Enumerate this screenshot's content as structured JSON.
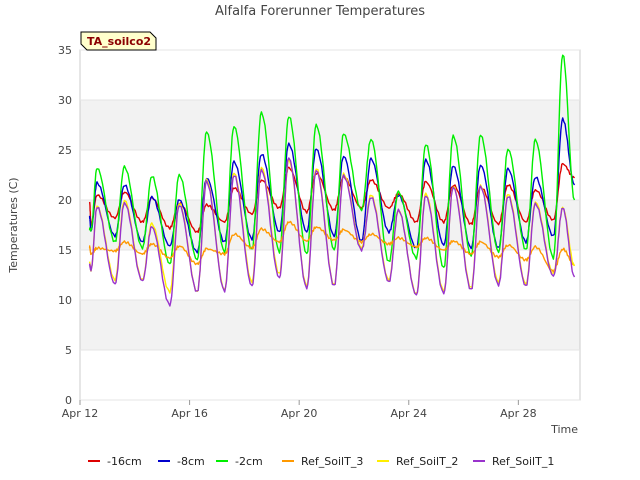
{
  "chart_data": {
    "type": "line",
    "title": "Alfalfa Forerunner Temperatures",
    "xlabel": "Time",
    "ylabel": "Temperatures (C)",
    "site_badge": "TA_soilco2",
    "ylim": [
      0,
      35
    ],
    "yticks": [
      0,
      5,
      10,
      15,
      20,
      25,
      30,
      35
    ],
    "xlim_days": [
      12,
      30.25
    ],
    "xticks": [
      {
        "day": 12,
        "label": "Apr 12"
      },
      {
        "day": 16,
        "label": "Apr 16"
      },
      {
        "day": 20,
        "label": "Apr 20"
      },
      {
        "day": 24,
        "label": "Apr 24"
      },
      {
        "day": 28,
        "label": "Apr 28"
      }
    ],
    "grid": "alternating horizontal bands",
    "legend_position": "bottom",
    "daily_days": [
      12,
      13,
      14,
      15,
      16,
      17,
      18,
      19,
      20,
      21,
      22,
      23,
      24,
      25,
      26,
      27,
      28,
      29
    ],
    "series": [
      {
        "name": "-16cm",
        "color": "#dd0000",
        "start": 19.8,
        "end": 22.2,
        "daily_max": [
          20.5,
          20.8,
          20.2,
          19.7,
          19.5,
          21.2,
          22.0,
          23.2,
          22.7,
          22.3,
          22.0,
          20.6,
          21.8,
          21.5,
          21.3,
          21.5,
          21.0,
          23.6
        ],
        "daily_min": [
          17.6,
          18.2,
          17.8,
          17.2,
          16.8,
          17.8,
          18.6,
          19.2,
          18.8,
          19.0,
          19.2,
          19.2,
          17.8,
          17.8,
          17.6,
          17.6,
          17.8,
          18.0
        ]
      },
      {
        "name": "-8cm",
        "color": "#0000cc",
        "start": 18.3,
        "end": 21.5,
        "daily_max": [
          21.7,
          21.5,
          20.3,
          20.0,
          22.2,
          23.8,
          24.6,
          25.6,
          25.1,
          24.4,
          24.1,
          20.5,
          24.0,
          23.4,
          23.5,
          23.1,
          22.3,
          28.1
        ],
        "daily_min": [
          16.9,
          16.4,
          15.8,
          15.4,
          14.8,
          15.8,
          16.1,
          16.8,
          16.8,
          16.4,
          15.9,
          16.8,
          15.2,
          15.5,
          15.2,
          15.2,
          15.8,
          16.4
        ]
      },
      {
        "name": "-2cm",
        "color": "#00ee00",
        "start": 17.1,
        "end": 20.0,
        "daily_max": [
          23.2,
          23.3,
          22.4,
          22.5,
          26.8,
          27.4,
          28.7,
          28.4,
          27.5,
          26.6,
          26.1,
          20.8,
          25.6,
          26.4,
          26.5,
          25.1,
          26.0,
          34.6
        ],
        "daily_min": [
          17.0,
          15.8,
          15.2,
          13.6,
          14.0,
          14.8,
          15.0,
          14.8,
          14.6,
          15.0,
          19.0,
          13.8,
          14.2,
          13.2,
          14.4,
          14.8,
          15.0,
          14.2
        ]
      },
      {
        "name": "Ref_SoilT_3",
        "color": "#ff9900",
        "start": 15.3,
        "end": 13.5,
        "daily_max": [
          15.2,
          15.8,
          15.6,
          15.4,
          15.1,
          16.6,
          17.1,
          17.8,
          17.3,
          17.0,
          16.6,
          16.2,
          16.2,
          15.9,
          15.8,
          15.5,
          15.3,
          15.1
        ],
        "daily_min": [
          14.6,
          14.9,
          14.6,
          14.2,
          13.6,
          14.6,
          15.2,
          15.8,
          15.9,
          16.0,
          15.8,
          15.6,
          15.3,
          15.0,
          14.6,
          14.3,
          14.0,
          12.9
        ]
      },
      {
        "name": "Ref_SoilT_2",
        "color": "#ffee00",
        "start": 13.8,
        "end": 13.4,
        "daily_max": [
          19.4,
          20.0,
          17.6,
          19.7,
          22.0,
          22.7,
          23.3,
          24.0,
          23.2,
          22.6,
          20.5,
          19.0,
          20.6,
          21.4,
          21.4,
          20.6,
          19.8,
          19.2
        ],
        "daily_min": [
          13.0,
          12.0,
          12.0,
          10.8,
          10.8,
          11.0,
          11.8,
          12.6,
          11.4,
          11.5,
          15.2,
          12.0,
          10.6,
          10.9,
          11.2,
          11.8,
          11.6,
          12.6
        ]
      },
      {
        "name": "Ref_SoilT_1",
        "color": "#9933cc",
        "start": 13.5,
        "end": 12.3,
        "daily_max": [
          19.3,
          19.7,
          17.3,
          19.5,
          21.8,
          22.5,
          23.0,
          24.2,
          23.0,
          22.4,
          20.3,
          19.0,
          20.4,
          21.3,
          21.3,
          20.4,
          19.6,
          19.2
        ],
        "daily_min": [
          13.0,
          11.6,
          11.9,
          9.5,
          10.8,
          10.9,
          11.4,
          12.2,
          11.2,
          11.4,
          15.0,
          11.8,
          10.5,
          10.7,
          11.0,
          11.5,
          11.4,
          12.4
        ]
      }
    ]
  }
}
